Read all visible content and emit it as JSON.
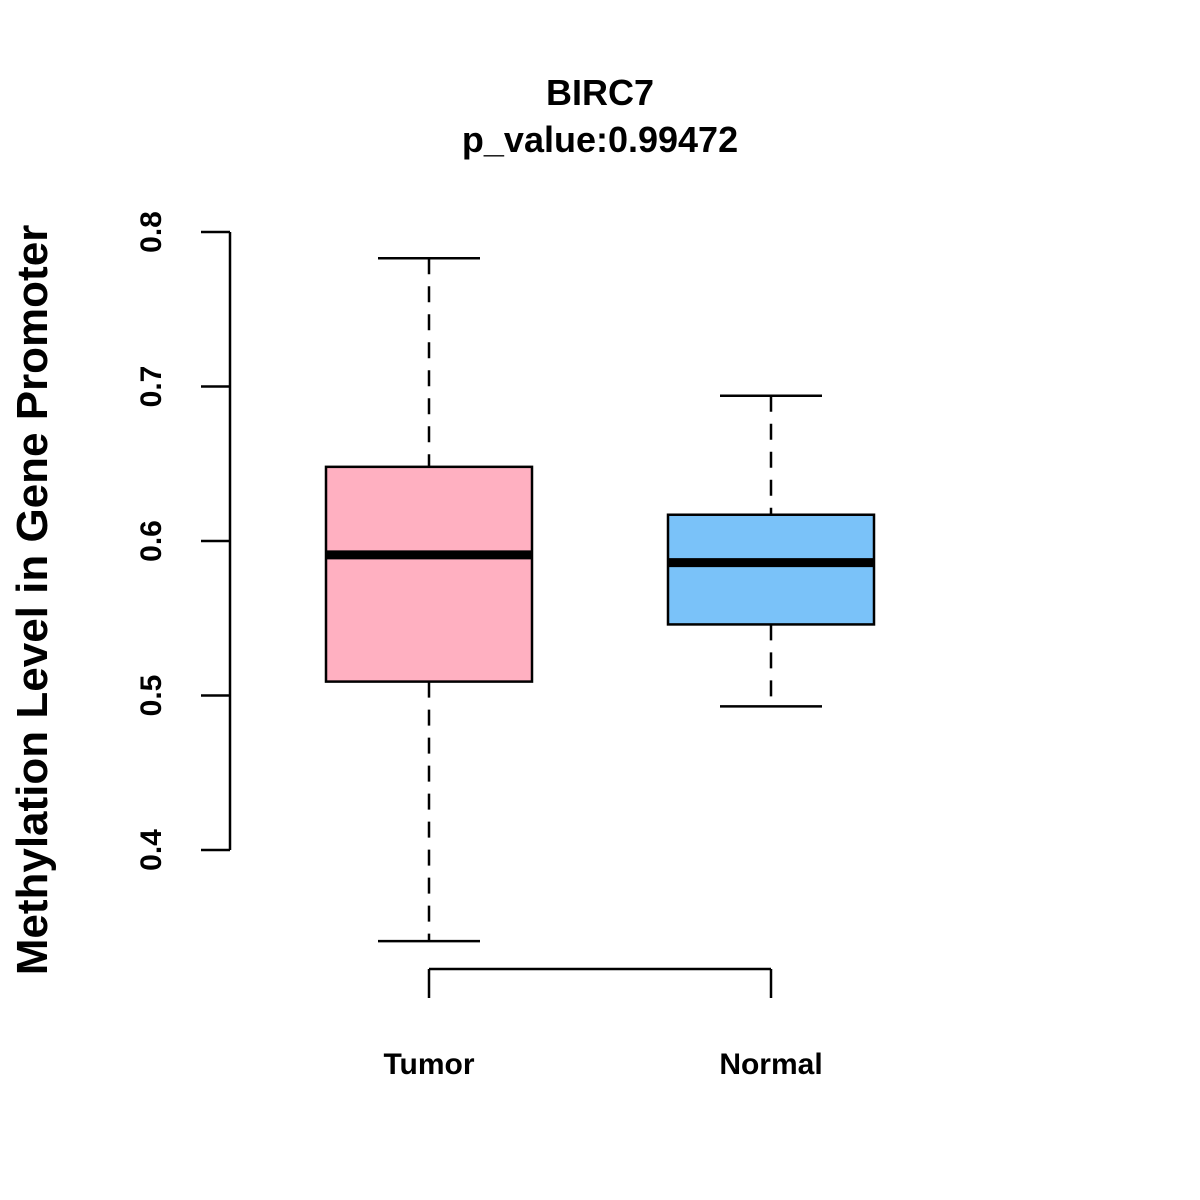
{
  "chart_data": {
    "type": "box",
    "title": "BIRC7",
    "subtitle": "p_value:0.99472",
    "xlabel": "",
    "ylabel": "Methylation Level in Gene Promoter",
    "ylim": [
      0.4,
      0.8
    ],
    "yticks": [
      0.4,
      0.5,
      0.6,
      0.7,
      0.8
    ],
    "ytick_labels": [
      "0.4",
      "0.5",
      "0.6",
      "0.7",
      "0.8"
    ],
    "categories": [
      "Tumor",
      "Normal"
    ],
    "series": [
      {
        "name": "Tumor",
        "color": "#FFB0C1",
        "whisker_low": 0.341,
        "q1": 0.509,
        "median": 0.591,
        "q3": 0.648,
        "whisker_high": 0.783
      },
      {
        "name": "Normal",
        "color": "#7AC2F9",
        "whisker_low": 0.493,
        "q1": 0.546,
        "median": 0.586,
        "q3": 0.617,
        "whisker_high": 0.694
      }
    ],
    "grid": false,
    "legend": "none"
  }
}
